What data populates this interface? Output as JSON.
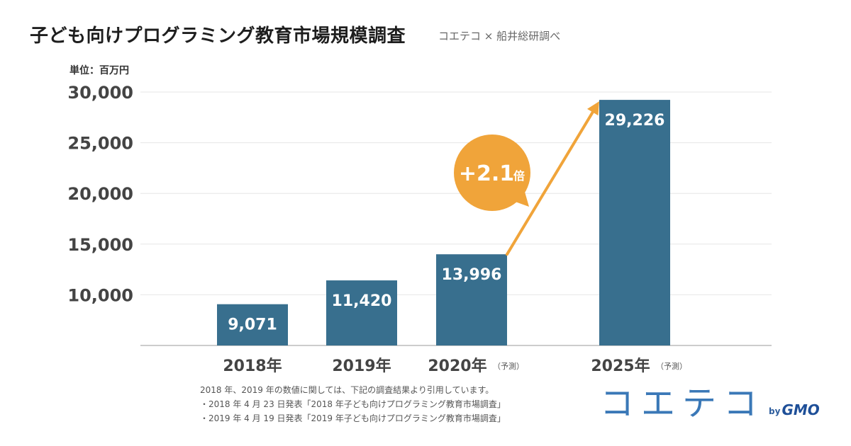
{
  "header": {
    "title": "子ども向けプログラミング教育市場規模調査",
    "source": "コエテコ × 船井総研調べ"
  },
  "chart_data": {
    "type": "bar",
    "unit_label": "単位：百万円",
    "categories": [
      "2018年",
      "2019年",
      "2020年",
      "2025年"
    ],
    "category_notes": [
      "",
      "",
      "（予測）",
      "（予測）"
    ],
    "values": [
      9071,
      11420,
      13996,
      29226
    ],
    "value_labels": [
      "9,071",
      "11,420",
      "13,996",
      "29,226"
    ],
    "yticks": [
      10000,
      15000,
      20000,
      25000,
      30000
    ],
    "ytick_labels": [
      "10,000",
      "15,000",
      "20,000",
      "25,000",
      "30,000"
    ],
    "ylim": [
      5000,
      30000
    ],
    "grid": true,
    "annotation": {
      "text": "+2.1",
      "suffix": "倍",
      "from": "2020年",
      "to": "2025年"
    },
    "colors": {
      "bar": "#386f8e",
      "accent": "#f0a43a",
      "grid": "#e6e6e6",
      "axis": "#cccccc"
    }
  },
  "footnotes": [
    "2018 年、2019 年の数値に関しては、下記の調査結果より引用しています。",
    "・2018 年 4 月 23 日発表「2018 年子ども向けプログラミング教育市場調査」",
    "・2019 年 4 月 19 日発表「2019 年子ども向けプログラミング教育市場調査」"
  ],
  "logo": {
    "main": "コエテコ",
    "by": "by",
    "brand": "GMO"
  }
}
